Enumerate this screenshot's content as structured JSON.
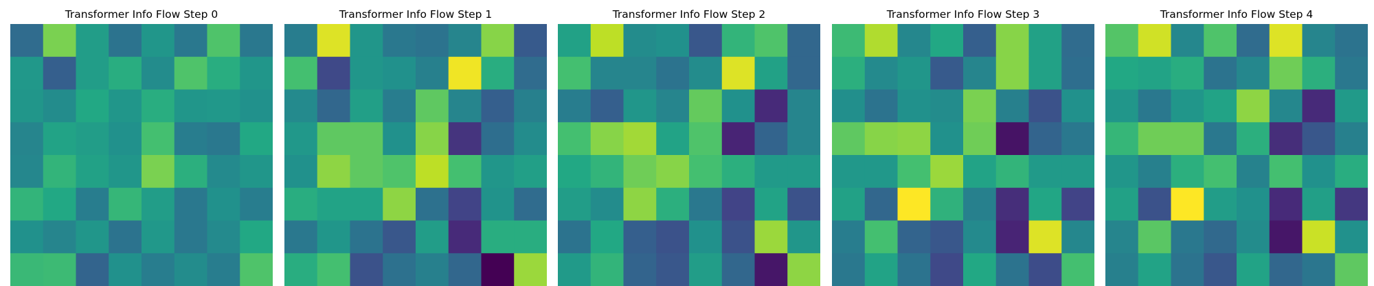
{
  "chart_data": [
    {
      "type": "heatmap",
      "title": "Transformer Info Flow Step 0",
      "colormap": "viridis",
      "vlim": [
        0,
        1
      ],
      "axes_visible": false,
      "values": [
        [
          0.35,
          0.8,
          0.55,
          0.38,
          0.52,
          0.4,
          0.72,
          0.4
        ],
        [
          0.53,
          0.3,
          0.55,
          0.62,
          0.48,
          0.72,
          0.62,
          0.52
        ],
        [
          0.52,
          0.48,
          0.6,
          0.52,
          0.62,
          0.52,
          0.53,
          0.5
        ],
        [
          0.45,
          0.58,
          0.55,
          0.5,
          0.7,
          0.42,
          0.4,
          0.6
        ],
        [
          0.46,
          0.65,
          0.57,
          0.52,
          0.8,
          0.63,
          0.47,
          0.52
        ],
        [
          0.65,
          0.6,
          0.42,
          0.66,
          0.55,
          0.4,
          0.5,
          0.42
        ],
        [
          0.5,
          0.45,
          0.52,
          0.38,
          0.53,
          0.4,
          0.47,
          0.6
        ],
        [
          0.67,
          0.68,
          0.32,
          0.5,
          0.42,
          0.48,
          0.42,
          0.72
        ]
      ]
    },
    {
      "type": "heatmap",
      "title": "Transformer Info Flow Step 1",
      "colormap": "viridis",
      "vlim": [
        0,
        1
      ],
      "axes_visible": false,
      "values": [
        [
          0.42,
          0.95,
          0.52,
          0.4,
          0.38,
          0.45,
          0.82,
          0.28
        ],
        [
          0.7,
          0.22,
          0.52,
          0.5,
          0.43,
          0.98,
          0.62,
          0.35
        ],
        [
          0.47,
          0.33,
          0.56,
          0.42,
          0.75,
          0.45,
          0.3,
          0.43
        ],
        [
          0.53,
          0.75,
          0.75,
          0.5,
          0.82,
          0.15,
          0.36,
          0.48
        ],
        [
          0.5,
          0.83,
          0.75,
          0.72,
          0.9,
          0.7,
          0.52,
          0.56
        ],
        [
          0.62,
          0.58,
          0.58,
          0.83,
          0.37,
          0.2,
          0.51,
          0.35
        ],
        [
          0.4,
          0.52,
          0.38,
          0.27,
          0.55,
          0.12,
          0.62,
          0.62
        ],
        [
          0.62,
          0.7,
          0.25,
          0.37,
          0.43,
          0.33,
          0.0,
          0.85
        ]
      ]
    },
    {
      "type": "heatmap",
      "title": "Transformer Info Flow Step 2",
      "colormap": "viridis",
      "vlim": [
        0,
        1
      ],
      "axes_visible": false,
      "values": [
        [
          0.57,
          0.9,
          0.48,
          0.5,
          0.27,
          0.65,
          0.72,
          0.33
        ],
        [
          0.7,
          0.45,
          0.45,
          0.38,
          0.48,
          0.95,
          0.57,
          0.33
        ],
        [
          0.42,
          0.3,
          0.52,
          0.45,
          0.76,
          0.5,
          0.12,
          0.45
        ],
        [
          0.7,
          0.82,
          0.86,
          0.58,
          0.72,
          0.1,
          0.32,
          0.45
        ],
        [
          0.6,
          0.65,
          0.78,
          0.82,
          0.7,
          0.63,
          0.54,
          0.54
        ],
        [
          0.55,
          0.48,
          0.83,
          0.63,
          0.4,
          0.2,
          0.58,
          0.25
        ],
        [
          0.38,
          0.6,
          0.3,
          0.25,
          0.5,
          0.25,
          0.85,
          0.52
        ],
        [
          0.54,
          0.65,
          0.32,
          0.27,
          0.55,
          0.33,
          0.06,
          0.83
        ]
      ]
    },
    {
      "type": "heatmap",
      "title": "Transformer Info Flow Step 3",
      "colormap": "viridis",
      "vlim": [
        0,
        1
      ],
      "axes_visible": false,
      "values": [
        [
          0.68,
          0.88,
          0.46,
          0.6,
          0.3,
          0.82,
          0.57,
          0.35
        ],
        [
          0.63,
          0.47,
          0.52,
          0.28,
          0.45,
          0.82,
          0.57,
          0.36
        ],
        [
          0.49,
          0.38,
          0.5,
          0.48,
          0.8,
          0.43,
          0.25,
          0.5
        ],
        [
          0.75,
          0.82,
          0.83,
          0.5,
          0.78,
          0.05,
          0.32,
          0.4
        ],
        [
          0.53,
          0.53,
          0.7,
          0.85,
          0.58,
          0.65,
          0.54,
          0.54
        ],
        [
          0.57,
          0.33,
          1.0,
          0.64,
          0.43,
          0.13,
          0.59,
          0.2
        ],
        [
          0.42,
          0.7,
          0.32,
          0.27,
          0.47,
          0.1,
          0.95,
          0.46
        ],
        [
          0.4,
          0.58,
          0.38,
          0.22,
          0.6,
          0.38,
          0.23,
          0.7
        ]
      ]
    },
    {
      "type": "heatmap",
      "title": "Transformer Info Flow Step 4",
      "colormap": "viridis",
      "vlim": [
        0,
        1
      ],
      "axes_visible": false,
      "values": [
        [
          0.73,
          0.93,
          0.46,
          0.72,
          0.35,
          0.95,
          0.45,
          0.38
        ],
        [
          0.6,
          0.58,
          0.62,
          0.38,
          0.46,
          0.78,
          0.63,
          0.4
        ],
        [
          0.52,
          0.4,
          0.52,
          0.58,
          0.83,
          0.46,
          0.12,
          0.54
        ],
        [
          0.66,
          0.78,
          0.78,
          0.4,
          0.63,
          0.13,
          0.27,
          0.43
        ],
        [
          0.52,
          0.43,
          0.63,
          0.7,
          0.44,
          0.7,
          0.5,
          0.62
        ],
        [
          0.57,
          0.25,
          1.0,
          0.55,
          0.5,
          0.12,
          0.56,
          0.16
        ],
        [
          0.45,
          0.74,
          0.4,
          0.34,
          0.48,
          0.06,
          0.92,
          0.5
        ],
        [
          0.43,
          0.58,
          0.38,
          0.27,
          0.58,
          0.33,
          0.39,
          0.75
        ]
      ]
    }
  ]
}
